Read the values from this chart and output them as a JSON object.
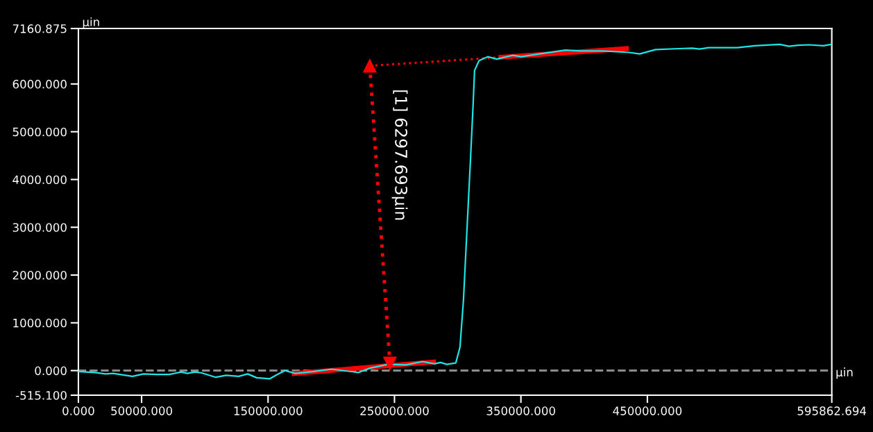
{
  "chart_data": {
    "type": "line",
    "xlabel": "µin",
    "ylabel": "µin",
    "xlim": [
      0,
      595862.694
    ],
    "ylim": [
      -515.1,
      7160.875
    ],
    "xticks": [
      {
        "value": 0,
        "label": "0.000"
      },
      {
        "value": 50000,
        "label": "50000.000"
      },
      {
        "value": 150000,
        "label": "150000.000"
      },
      {
        "value": 250000,
        "label": "250000.000"
      },
      {
        "value": 350000,
        "label": "350000.000"
      },
      {
        "value": 450000,
        "label": "450000.000"
      },
      {
        "value": 595862.694,
        "label": "595862.694"
      }
    ],
    "yticks": [
      {
        "value": -515.1,
        "label": "-515.100"
      },
      {
        "value": 0,
        "label": "0.000"
      },
      {
        "value": 1000,
        "label": "1000.000"
      },
      {
        "value": 2000,
        "label": "2000.000"
      },
      {
        "value": 3000,
        "label": "3000.000"
      },
      {
        "value": 4000,
        "label": "4000.000"
      },
      {
        "value": 5000,
        "label": "5000.000"
      },
      {
        "value": 6000,
        "label": "6000.000"
      },
      {
        "value": 7160.875,
        "label": "7160.875"
      }
    ],
    "grid": false,
    "ref_lines": [
      {
        "axis": "y",
        "value": 0,
        "color": "#8c8c8c",
        "line_style": "dashed"
      }
    ],
    "series": [
      {
        "color": "#1ee6e6",
        "line_style": "solid",
        "x": [
          0,
          13170,
          21400,
          27430,
          42790,
          51570,
          61990,
          71870,
          81200,
          86140,
          92170,
          97660,
          108630,
          116870,
          126750,
          133880,
          141010,
          151440,
          157480,
          163510,
          171740,
          186010,
          200280,
          212350,
          221680,
          230450,
          244720,
          258990,
          272160,
          281490,
          286430,
          291370,
          298500,
          301790,
          304540,
          307280,
          310030,
          312220,
          313320,
          316880,
          323740,
          330870,
          343490,
          350350,
          364610,
          385190,
          396720,
          414820,
          435670,
          443900,
          456520,
          475170,
          485600,
          491090,
          498220,
          521270,
          534980,
          554730,
          561870,
          569550,
          577780,
          589300,
          595860
        ],
        "values": [
          -20,
          -40,
          -70,
          -60,
          -120,
          -70,
          -80,
          -80,
          -30,
          -60,
          -30,
          -50,
          -140,
          -100,
          -120,
          -70,
          -150,
          -170,
          -80,
          0,
          -60,
          -20,
          30,
          -10,
          -40,
          50,
          130,
          120,
          190,
          140,
          170,
          130,
          160,
          490,
          1470,
          2930,
          4380,
          5590,
          6280,
          6490,
          6570,
          6520,
          6600,
          6570,
          6630,
          6710,
          6690,
          6690,
          6660,
          6630,
          6720,
          6740,
          6750,
          6730,
          6760,
          6760,
          6800,
          6830,
          6790,
          6810,
          6820,
          6800,
          6830
        ]
      },
      {
        "color": "#ff0000",
        "line_style": "solid",
        "x": [
          170650,
          280940
        ],
        "values": [
          -60,
          180
        ]
      },
      {
        "color": "#ff0000",
        "line_style": "solid",
        "x": [
          334170,
          433480
        ],
        "values": [
          6560,
          6740
        ]
      },
      {
        "color": "#ff0000",
        "line_style": "dotted",
        "x": [
          230450,
          334170
        ],
        "values": [
          6380,
          6560
        ]
      },
      {
        "color": "#ff0000",
        "line_style": "dotted",
        "marker": "triangle",
        "x": [
          230450,
          246370
        ],
        "values": [
          6380,
          150
        ]
      }
    ],
    "annotations": [
      "[1] 6297.693µin"
    ]
  }
}
